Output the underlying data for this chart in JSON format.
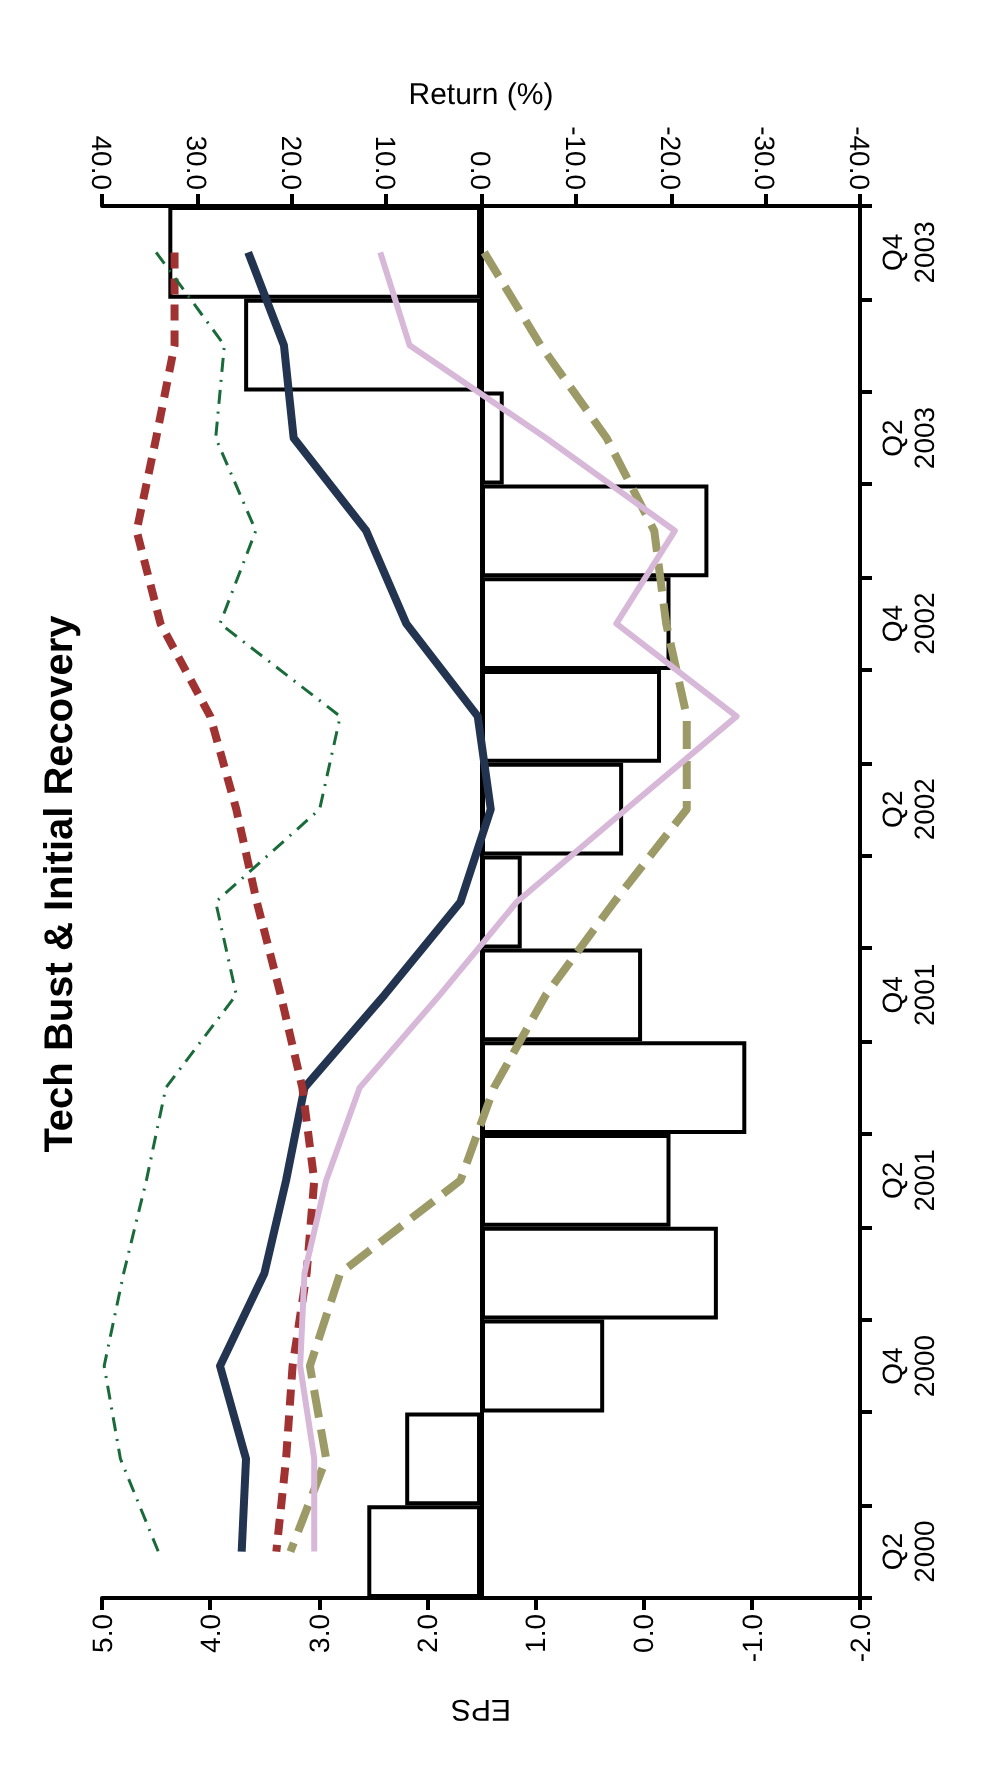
{
  "chart_data": {
    "type": "bar",
    "orientation": "horizontal",
    "title": "Tech Bust & Initial Recovery",
    "xlabel": "EPS",
    "x2label": "Return (%)",
    "categories": [
      "Q4\n2003",
      null,
      "Q2\n2003",
      null,
      "Q4\n2002",
      null,
      "Q2\n2002",
      null,
      "Q4\n2001",
      null,
      "Q2\n2001",
      null,
      "Q4\n2000",
      null,
      "Q2\n2000"
    ],
    "series": [
      {
        "axis": "x2",
        "color": "#ffffff",
        "values": [
          33,
          25,
          -2.4,
          -24,
          -20,
          -19,
          -15,
          -4.3,
          -17,
          -28,
          -20,
          -25,
          -13,
          8,
          12
        ]
      },
      {
        "type": "line",
        "color": "#233450",
        "line_style": "solid",
        "values": [
          3.65,
          3.32,
          3.23,
          2.56,
          2.19,
          1.53,
          1.41,
          1.69,
          2.39,
          3.13,
          3.3,
          3.5,
          3.91,
          3.67,
          3.71
        ]
      },
      {
        "type": "line",
        "color": "#a03232",
        "line_style": "dashed",
        "values": [
          4.33,
          4.33,
          4.5,
          4.68,
          4.46,
          4.0,
          3.76,
          3.57,
          3.35,
          3.15,
          3.04,
          3.11,
          3.24,
          3.3,
          3.39
        ]
      },
      {
        "type": "line",
        "color": "#1a6b3a",
        "line_style": "dashed",
        "values": [
          4.5,
          3.87,
          3.95,
          3.58,
          3.91,
          2.8,
          2.99,
          3.95,
          3.76,
          4.41,
          4.59,
          4.8,
          4.98,
          4.83,
          4.48
        ]
      },
      {
        "type": "line",
        "color": "#9c9a66",
        "line_style": "dashed",
        "values": [
          1.47,
          0.95,
          0.34,
          -0.1,
          -0.21,
          -0.4,
          -0.4,
          0.27,
          0.9,
          1.38,
          1.69,
          2.8,
          3.08,
          2.93,
          3.26
        ]
      },
      {
        "type": "line",
        "color": "#d8b8d8",
        "line_style": "solid",
        "values": [
          2.43,
          2.16,
          0.9,
          -0.29,
          0.25,
          -0.86,
          0.16,
          1.17,
          1.88,
          2.62,
          2.93,
          3.13,
          3.17,
          3.04,
          3.04
        ]
      }
    ],
    "xlim": [
      5,
      -2
    ],
    "xticks": [
      {
        "value": 5,
        "label": "5.0"
      },
      {
        "value": 4,
        "label": "4.0"
      },
      {
        "value": 3,
        "label": "3.0"
      },
      {
        "value": 2,
        "label": "2.0"
      },
      {
        "value": 1,
        "label": "1.0"
      },
      {
        "value": 0,
        "label": "0.0"
      },
      {
        "value": -1,
        "label": "-1.0"
      },
      {
        "value": -2,
        "label": "-2.0"
      }
    ],
    "x2lim": [
      40,
      -40
    ],
    "x2ticks": [
      {
        "value": 40,
        "label": "40.0"
      },
      {
        "value": 30,
        "label": "30.0"
      },
      {
        "value": 20,
        "label": "20.0"
      },
      {
        "value": 10,
        "label": "10.0"
      },
      {
        "value": 0,
        "label": "0.0"
      },
      {
        "value": -10,
        "label": "-10.0"
      },
      {
        "value": -20,
        "label": "-20.0"
      },
      {
        "value": -30,
        "label": "-30.0"
      },
      {
        "value": -40,
        "label": "-40.0"
      }
    ],
    "marker": "none"
  }
}
